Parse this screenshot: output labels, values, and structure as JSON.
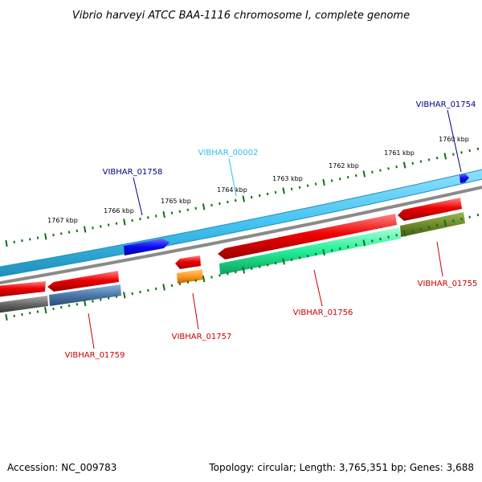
{
  "title": "Vibrio harveyi ATCC BAA-1116 chromosome I, complete genome",
  "footer": {
    "accession": "Accession: NC_009783",
    "summary": "Topology: circular; Length: 3,765,351 bp; Genes: 3,688"
  },
  "kbp_labels": [
    "1767 kbp",
    "1766 kbp",
    "1765 kbp",
    "1764 kbp",
    "1763 kbp",
    "1762 kbp",
    "1761 kbp",
    "1760 kbp"
  ],
  "gene_labels": [
    {
      "text": "VIBHAR_01754",
      "color": "#00008b"
    },
    {
      "text": "VIBHAR_00002",
      "color": "#33bbee"
    },
    {
      "text": "VIBHAR_01758",
      "color": "#00008b"
    },
    {
      "text": "VIBHAR_01755",
      "color": "#cc0000"
    },
    {
      "text": "VIBHAR_01756",
      "color": "#cc0000"
    },
    {
      "text": "VIBHAR_01757",
      "color": "#cc0000"
    },
    {
      "text": "VIBHAR_01759",
      "color": "#cc0000"
    }
  ],
  "colors": {
    "forward_track": "#45c4f0",
    "forward_gene": "#0a0af0",
    "reverse_gene": "#ee0000",
    "genome_line": "#999999",
    "tick": "#107010",
    "green_track": "#22ee99",
    "olive_track": "#6f8a2a",
    "steel_track": "#4a78a8",
    "grey_track": "#666666",
    "orange_track": "#ff9922"
  }
}
